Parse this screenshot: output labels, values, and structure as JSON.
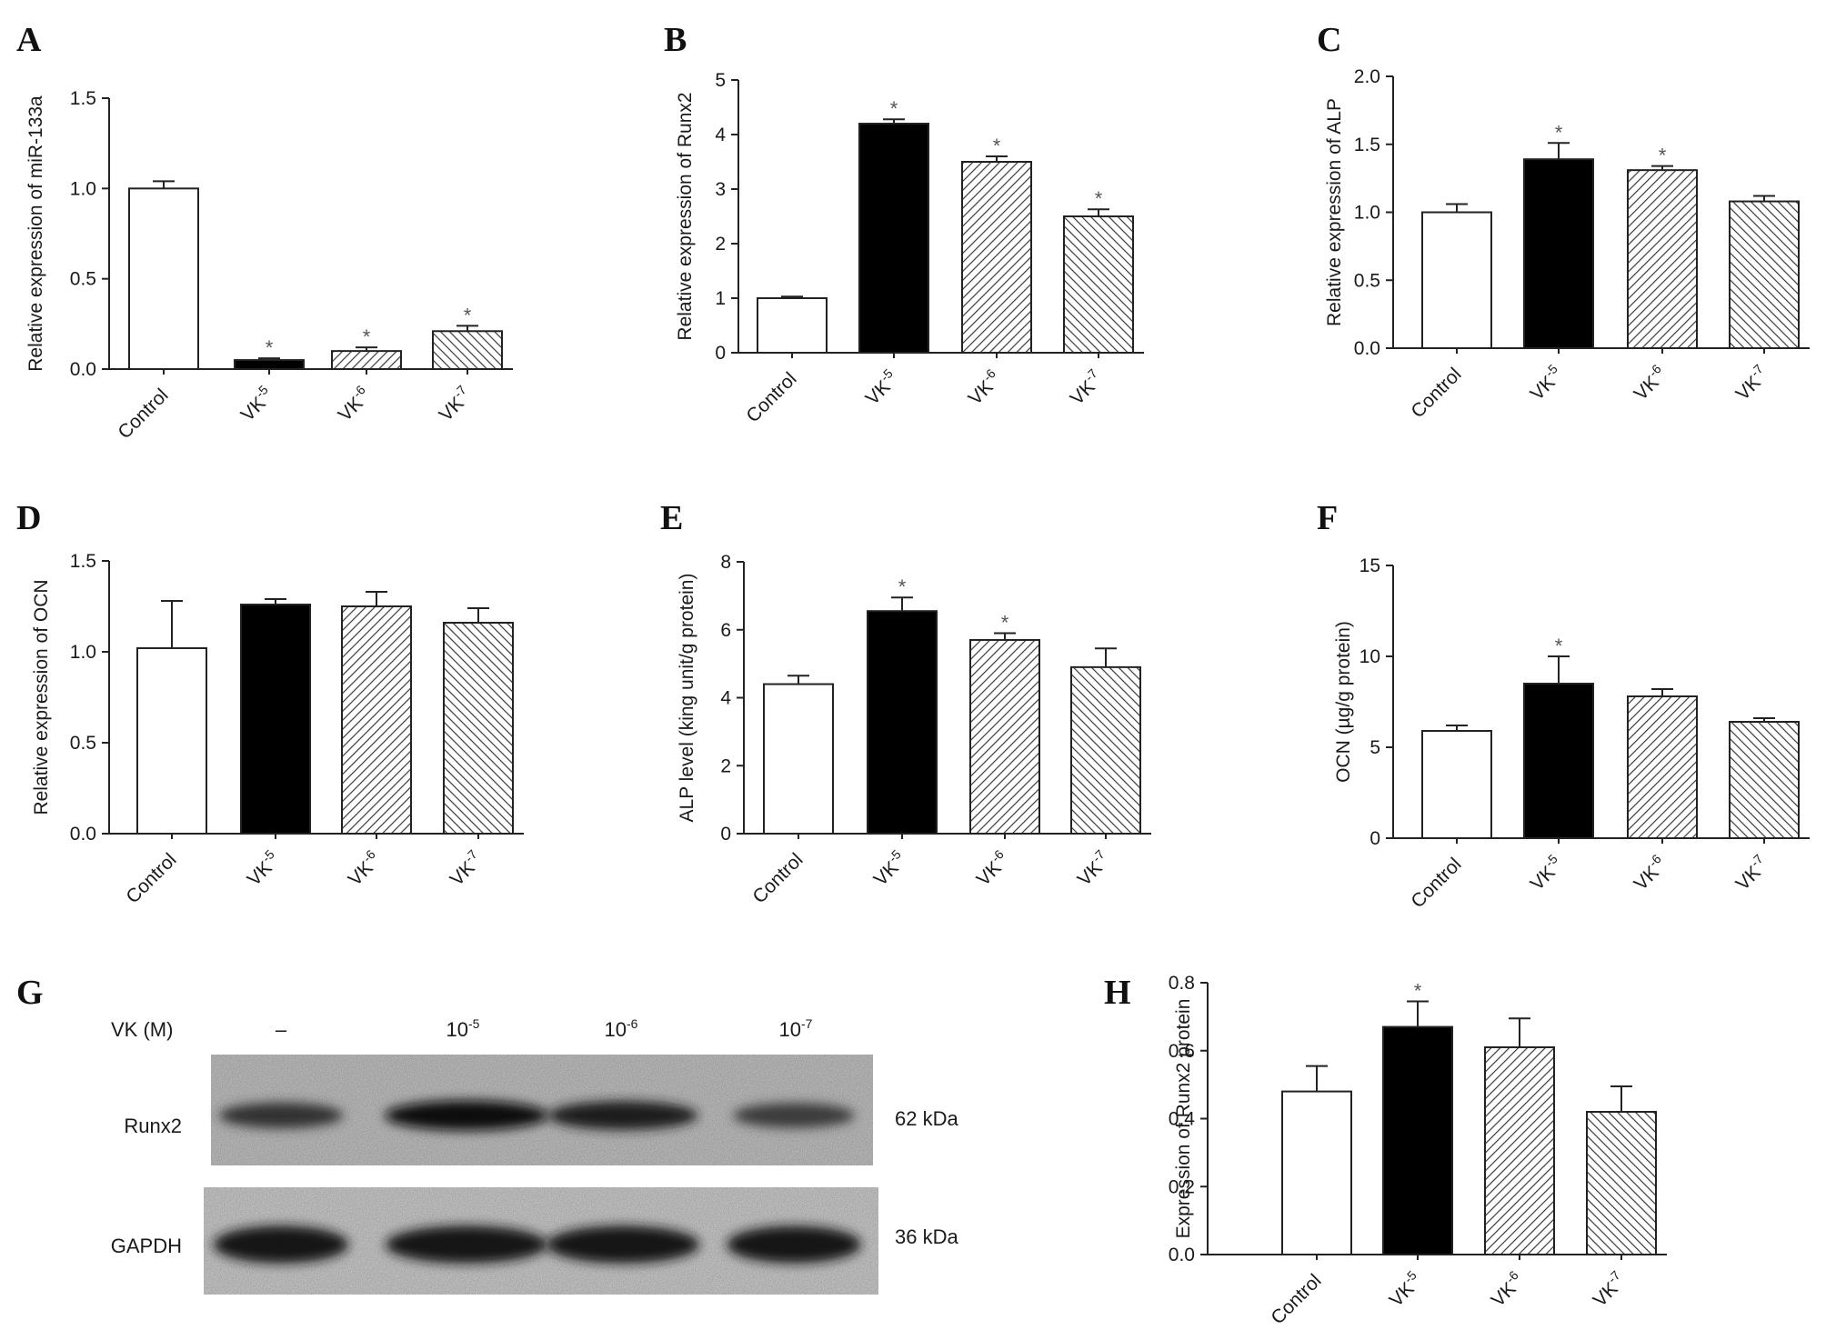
{
  "chart_data": [
    {
      "panel": "A",
      "type": "bar",
      "categories": [
        "Control",
        "VK-5",
        "VK-6",
        "VK-7"
      ],
      "values": [
        1.0,
        0.05,
        0.1,
        0.21
      ],
      "errors": [
        0.04,
        0.01,
        0.02,
        0.03
      ],
      "significant": [
        false,
        true,
        true,
        true
      ],
      "ylabel": "Relative expression of miR-133a",
      "ylim": [
        0,
        1.5
      ],
      "yticks": [
        0,
        0.5,
        1.0,
        1.5
      ],
      "tick_decimals": 1
    },
    {
      "panel": "B",
      "type": "bar",
      "categories": [
        "Control",
        "VK-5",
        "VK-6",
        "VK-7"
      ],
      "values": [
        1.0,
        4.2,
        3.5,
        2.5
      ],
      "errors": [
        0.03,
        0.08,
        0.1,
        0.13
      ],
      "significant": [
        false,
        true,
        true,
        true
      ],
      "ylabel": "Relative expression of Runx2",
      "ylim": [
        0,
        5
      ],
      "yticks": [
        0,
        1,
        2,
        3,
        4,
        5
      ],
      "tick_decimals": 0
    },
    {
      "panel": "C",
      "type": "bar",
      "categories": [
        "Control",
        "VK-5",
        "VK-6",
        "VK-7"
      ],
      "values": [
        1.0,
        1.39,
        1.31,
        1.08
      ],
      "errors": [
        0.06,
        0.12,
        0.03,
        0.04
      ],
      "significant": [
        false,
        true,
        true,
        false
      ],
      "ylabel": "Relative expression of ALP",
      "ylim": [
        0,
        2.0
      ],
      "yticks": [
        0,
        0.5,
        1.0,
        1.5,
        2.0
      ],
      "tick_decimals": 1
    },
    {
      "panel": "D",
      "type": "bar",
      "categories": [
        "Control",
        "VK-5",
        "VK-6",
        "VK-7"
      ],
      "values": [
        1.02,
        1.26,
        1.25,
        1.16
      ],
      "errors": [
        0.26,
        0.03,
        0.08,
        0.08
      ],
      "significant": [
        false,
        false,
        false,
        false
      ],
      "ylabel": "Relative expression of OCN",
      "ylim": [
        0,
        1.5
      ],
      "yticks": [
        0,
        0.5,
        1.0,
        1.5
      ],
      "tick_decimals": 1
    },
    {
      "panel": "E",
      "type": "bar",
      "categories": [
        "Control",
        "VK-5",
        "VK-6",
        "VK-7"
      ],
      "values": [
        4.4,
        6.55,
        5.7,
        4.9
      ],
      "errors": [
        0.25,
        0.4,
        0.2,
        0.55
      ],
      "significant": [
        false,
        true,
        true,
        false
      ],
      "ylabel": "ALP level (king unit/g protein)",
      "ylim": [
        0,
        8
      ],
      "yticks": [
        0,
        2,
        4,
        6,
        8
      ],
      "tick_decimals": 0
    },
    {
      "panel": "F",
      "type": "bar",
      "categories": [
        "Control",
        "VK-5",
        "VK-6",
        "VK-7"
      ],
      "values": [
        5.9,
        8.5,
        7.8,
        6.4
      ],
      "errors": [
        0.3,
        1.5,
        0.4,
        0.2
      ],
      "significant": [
        false,
        true,
        false,
        false
      ],
      "ylabel": "OCN (µg/g protein)",
      "ylim": [
        0,
        15
      ],
      "yticks": [
        0,
        5,
        10,
        15
      ],
      "tick_decimals": 0
    },
    {
      "panel": "H",
      "type": "bar",
      "categories": [
        "Control",
        "VK-5",
        "VK-6",
        "VK-7"
      ],
      "values": [
        0.48,
        0.67,
        0.61,
        0.42
      ],
      "errors": [
        0.075,
        0.075,
        0.085,
        0.075
      ],
      "significant": [
        false,
        true,
        false,
        false
      ],
      "ylabel": "Expression of Runx2 protein",
      "ylim": [
        0,
        0.8
      ],
      "yticks": [
        0,
        0.2,
        0.4,
        0.6,
        0.8
      ],
      "tick_decimals": 1
    }
  ],
  "blot": {
    "panel": "G",
    "header_label": "VK (M)",
    "lanes": [
      "–",
      "10-5",
      "10-6",
      "10-7"
    ],
    "rows": [
      {
        "label": "Runx2",
        "size": "62 kDa",
        "band_intensity": [
          0.55,
          1.0,
          0.85,
          0.45
        ]
      },
      {
        "label": "GAPDH",
        "size": "36 kDa",
        "band_intensity": [
          0.95,
          0.95,
          0.95,
          0.92
        ]
      }
    ]
  },
  "significance_marker": "*",
  "bar_styles": [
    "#ffffff",
    "#000000",
    "hatch-right",
    "hatch-left"
  ]
}
